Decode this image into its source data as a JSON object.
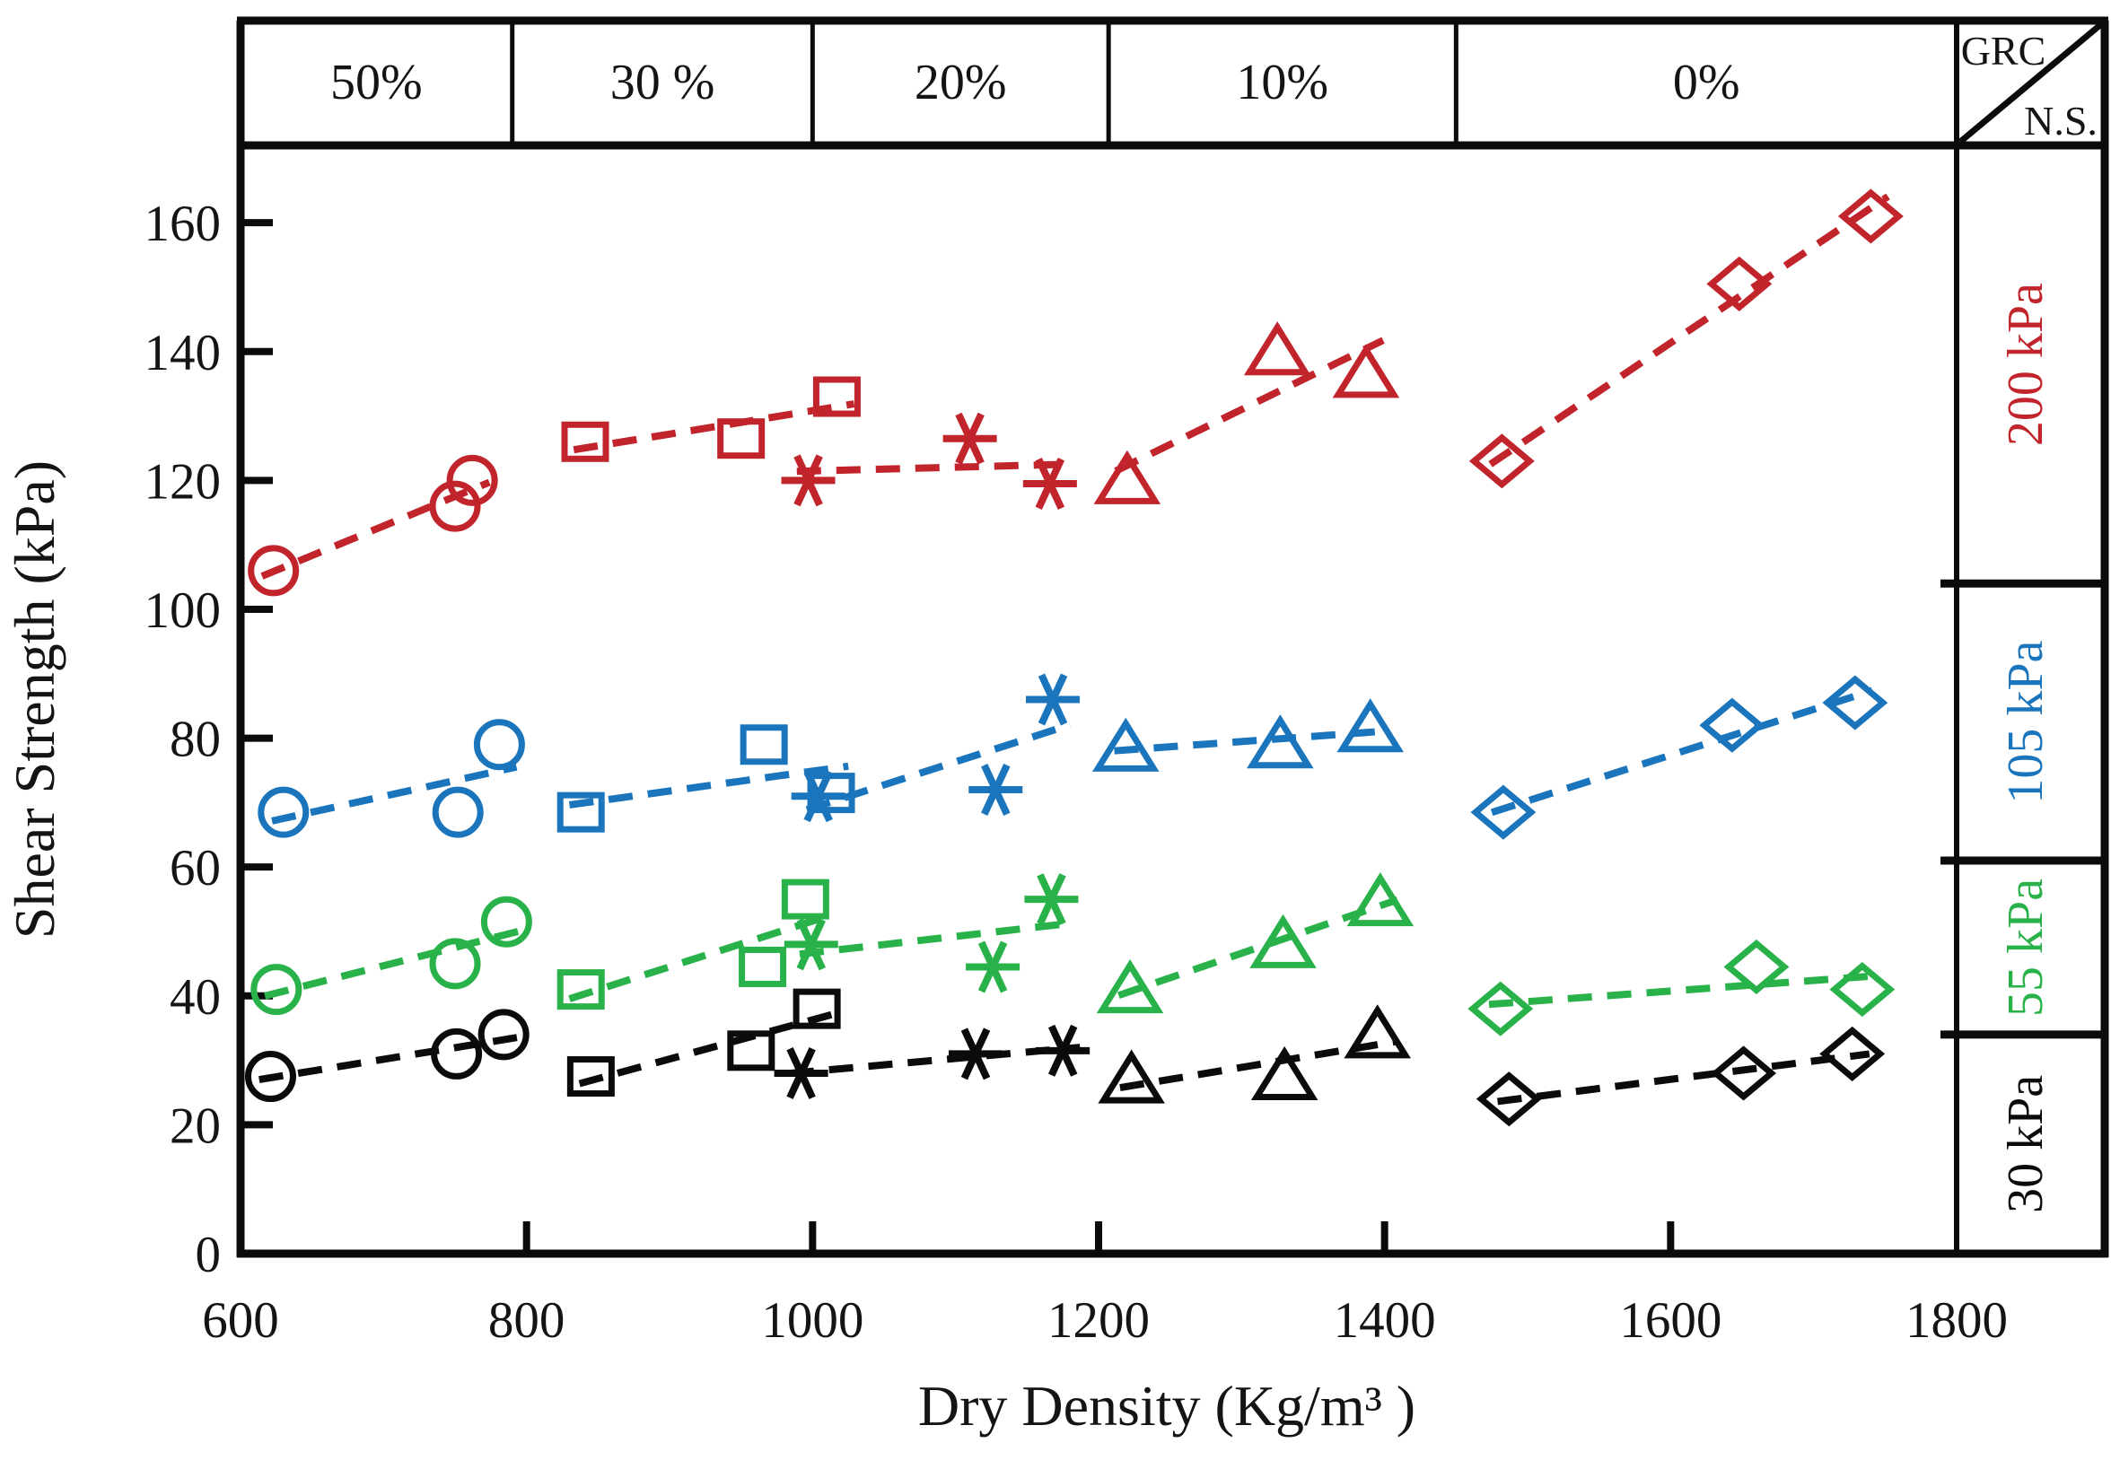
{
  "chart_data": {
    "type": "scatter",
    "title": "",
    "xlabel": "Dry Density (Kg/m³ )",
    "ylabel": "Shear Strength (kPa)",
    "xlim": [
      600,
      1800
    ],
    "ylim": [
      0,
      172
    ],
    "xticks": [
      600,
      800,
      1000,
      1200,
      1400,
      1600,
      1800
    ],
    "yticks": [
      0,
      20,
      40,
      60,
      80,
      100,
      120,
      140,
      160
    ],
    "grid": false,
    "legend_position": "table-bands-top-and-right",
    "corner_legend": {
      "top": "GRC",
      "bottom": "N.S."
    },
    "grc_bands": [
      {
        "label": "50%",
        "marker": "circle",
        "x_from": 600,
        "x_to": 790
      },
      {
        "label": "30 %",
        "marker": "square",
        "x_from": 790,
        "x_to": 1000
      },
      {
        "label": "20%",
        "marker": "asterisk",
        "x_from": 1000,
        "x_to": 1207
      },
      {
        "label": "10%",
        "marker": "triangle",
        "x_from": 1207,
        "x_to": 1450
      },
      {
        "label": "0%",
        "marker": "diamond",
        "x_from": 1450,
        "x_to": 1800
      }
    ],
    "ns_bands": [
      {
        "label": "200 kPa",
        "color": "#c2242b",
        "y_from": 104,
        "y_to": 172
      },
      {
        "label": "105 kPa",
        "color": "#1b75bc",
        "y_from": 61,
        "y_to": 104
      },
      {
        "label": "55 kPa",
        "color": "#2ab24a",
        "y_from": 34,
        "y_to": 61
      },
      {
        "label": "30 kPa",
        "color": "#0b0b0b",
        "y_from": 0,
        "y_to": 34
      }
    ],
    "series": [
      {
        "grc": "50%",
        "ns": "200 kPa",
        "marker": "circle",
        "color": "#c2242b",
        "points": [
          [
            623,
            106
          ],
          [
            750,
            116
          ],
          [
            762,
            120
          ]
        ]
      },
      {
        "grc": "30 %",
        "ns": "200 kPa",
        "marker": "square",
        "color": "#c2242b",
        "points": [
          [
            841,
            126
          ],
          [
            950,
            126.5
          ],
          [
            1017,
            133
          ]
        ]
      },
      {
        "grc": "20%",
        "ns": "200 kPa",
        "marker": "asterisk",
        "color": "#c2242b",
        "points": [
          [
            997,
            120
          ],
          [
            1110,
            126.5
          ],
          [
            1166,
            119.5
          ]
        ]
      },
      {
        "grc": "10%",
        "ns": "200 kPa",
        "marker": "triangle",
        "color": "#c2242b",
        "points": [
          [
            1220,
            120
          ],
          [
            1325,
            140
          ],
          [
            1387,
            136.5
          ]
        ]
      },
      {
        "grc": "0%",
        "ns": "200 kPa",
        "marker": "diamond",
        "color": "#c2242b",
        "points": [
          [
            1482,
            123
          ],
          [
            1648,
            150.5
          ],
          [
            1740,
            161
          ]
        ]
      },
      {
        "grc": "50%",
        "ns": "105 kPa",
        "marker": "circle",
        "color": "#1b75bc",
        "points": [
          [
            630,
            68.5
          ],
          [
            752,
            68.5
          ],
          [
            781,
            79
          ]
        ]
      },
      {
        "grc": "30 %",
        "ns": "105 kPa",
        "marker": "square",
        "color": "#1b75bc",
        "points": [
          [
            838,
            68.5
          ],
          [
            966,
            79
          ],
          [
            1013,
            71.5
          ]
        ]
      },
      {
        "grc": "20%",
        "ns": "105 kPa",
        "marker": "asterisk",
        "color": "#1b75bc",
        "points": [
          [
            1004,
            71
          ],
          [
            1128,
            72
          ],
          [
            1168,
            86
          ]
        ]
      },
      {
        "grc": "10%",
        "ns": "105 kPa",
        "marker": "triangle",
        "color": "#1b75bc",
        "points": [
          [
            1219,
            78.5
          ],
          [
            1327,
            79
          ],
          [
            1390,
            81.5
          ]
        ]
      },
      {
        "grc": "0%",
        "ns": "105 kPa",
        "marker": "diamond",
        "color": "#1b75bc",
        "points": [
          [
            1483,
            68.5
          ],
          [
            1643,
            82
          ],
          [
            1729,
            85.5
          ]
        ]
      },
      {
        "grc": "50%",
        "ns": "55 kPa",
        "marker": "circle",
        "color": "#2ab24a",
        "points": [
          [
            625,
            41
          ],
          [
            750,
            45
          ],
          [
            786,
            51.5
          ]
        ]
      },
      {
        "grc": "30 %",
        "ns": "55 kPa",
        "marker": "square",
        "color": "#2ab24a",
        "points": [
          [
            838,
            41
          ],
          [
            965,
            44.5
          ],
          [
            995,
            55
          ]
        ]
      },
      {
        "grc": "20%",
        "ns": "55 kPa",
        "marker": "asterisk",
        "color": "#2ab24a",
        "points": [
          [
            999,
            48
          ],
          [
            1126,
            44.5
          ],
          [
            1167,
            55
          ]
        ]
      },
      {
        "grc": "10%",
        "ns": "55 kPa",
        "marker": "triangle",
        "color": "#2ab24a",
        "points": [
          [
            1222,
            41
          ],
          [
            1329,
            48
          ],
          [
            1397,
            54.5
          ]
        ]
      },
      {
        "grc": "0%",
        "ns": "55 kPa",
        "marker": "diamond",
        "color": "#2ab24a",
        "points": [
          [
            1481,
            38
          ],
          [
            1660,
            44.5
          ],
          [
            1734,
            41
          ]
        ]
      },
      {
        "grc": "50%",
        "ns": "30 kPa",
        "marker": "circle",
        "color": "#0b0b0b",
        "points": [
          [
            621,
            27.5
          ],
          [
            751,
            31
          ],
          [
            784,
            34
          ]
        ]
      },
      {
        "grc": "30 %",
        "ns": "30 kPa",
        "marker": "square",
        "color": "#0b0b0b",
        "points": [
          [
            845,
            27.5
          ],
          [
            957,
            31.5
          ],
          [
            1003,
            38
          ]
        ]
      },
      {
        "grc": "20%",
        "ns": "30 kPa",
        "marker": "asterisk",
        "color": "#0b0b0b",
        "points": [
          [
            992,
            28
          ],
          [
            1114,
            31
          ],
          [
            1175,
            31.5
          ]
        ]
      },
      {
        "grc": "10%",
        "ns": "30 kPa",
        "marker": "triangle",
        "color": "#0b0b0b",
        "points": [
          [
            1223,
            27
          ],
          [
            1330,
            27.5
          ],
          [
            1395,
            34
          ]
        ]
      },
      {
        "grc": "0%",
        "ns": "30 kPa",
        "marker": "diamond",
        "color": "#0b0b0b",
        "points": [
          [
            1487,
            24
          ],
          [
            1651,
            28
          ],
          [
            1727,
            31
          ]
        ]
      }
    ]
  }
}
